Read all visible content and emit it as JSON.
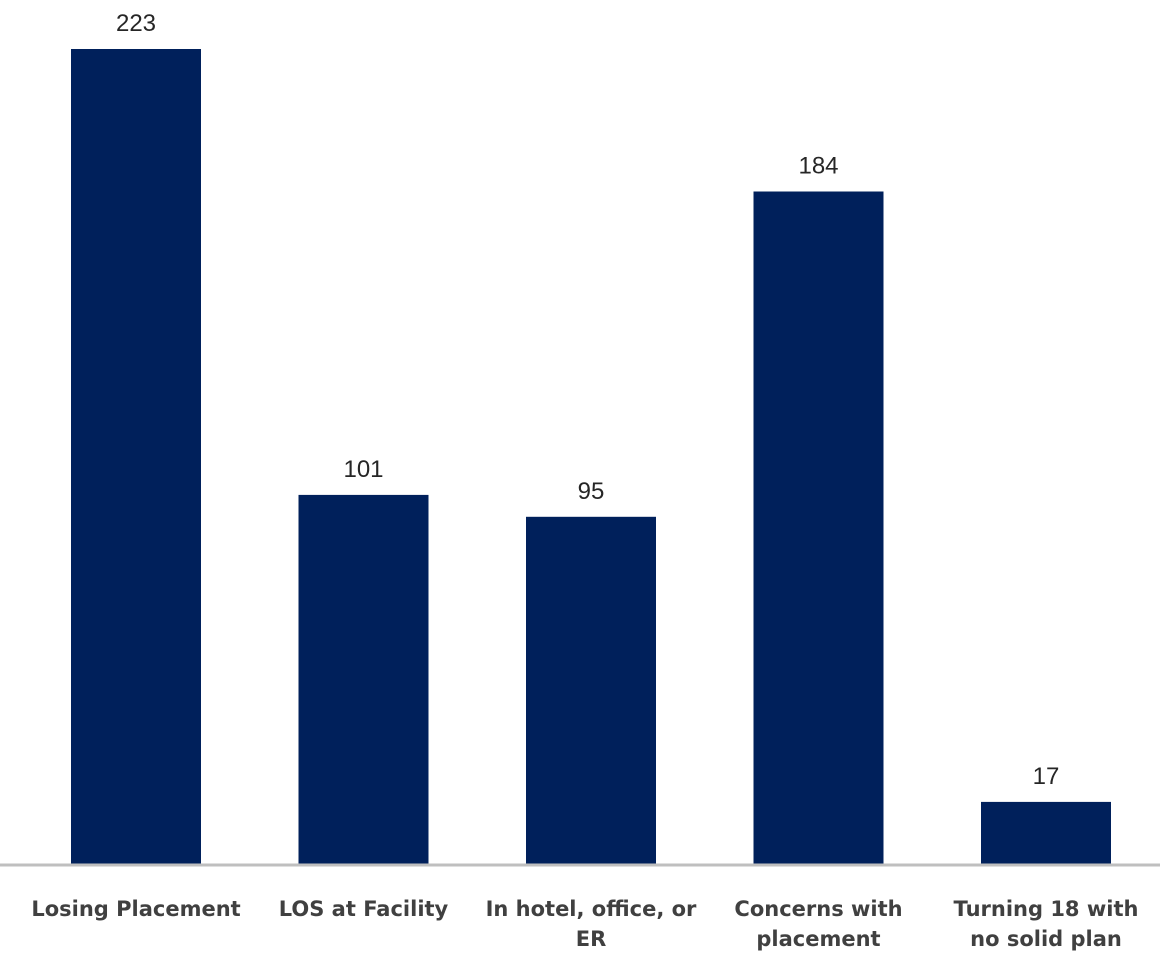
{
  "chart_data": {
    "type": "bar",
    "categories": [
      [
        "Losing Placement"
      ],
      [
        "LOS at Facility"
      ],
      [
        "In hotel, office, or",
        "ER"
      ],
      [
        "Concerns with",
        "placement"
      ],
      [
        "Turning 18 with",
        "no solid plan"
      ]
    ],
    "values": [
      223,
      101,
      95,
      184,
      17
    ],
    "data_labels": [
      "223",
      "101",
      "95",
      "184",
      "17"
    ],
    "ylim": [
      0,
      223
    ],
    "grid": false,
    "legend": "none",
    "colors": {
      "bar": "#00205B",
      "axis": "#BFBFBF",
      "value_text": "#262626",
      "category_text": "#404040"
    }
  }
}
